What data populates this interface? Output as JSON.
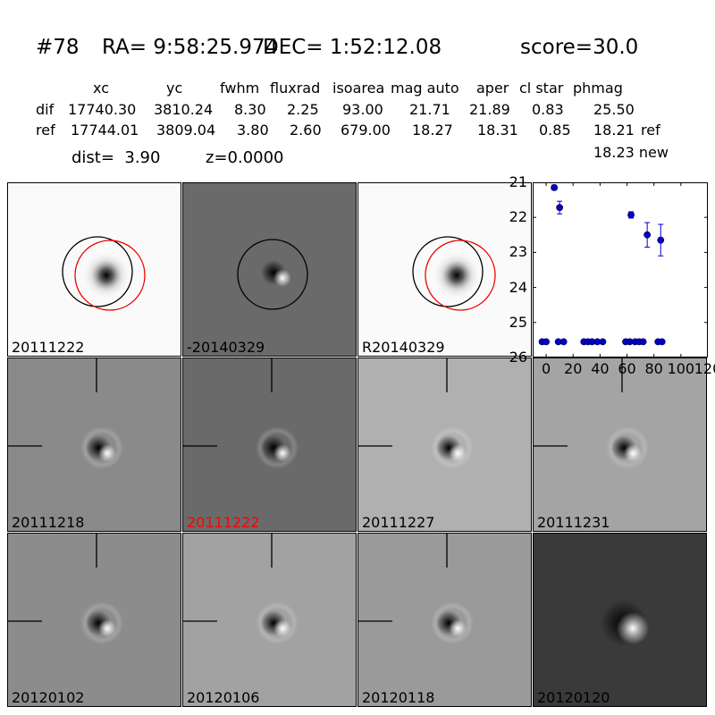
{
  "header": {
    "id": "#78",
    "ra": "RA= 9:58:25.974",
    "dec": "DEC= 1:52:12.08",
    "score": "score=30.0"
  },
  "table": {
    "columns": [
      "xc",
      "yc",
      "fwhm",
      "fluxrad",
      "isoarea",
      "mag auto",
      "aper",
      "cl star",
      "phmag"
    ],
    "rows": [
      {
        "label": "dif",
        "values": [
          "17740.30",
          "3810.24",
          "8.30",
          "2.25",
          "93.00",
          "21.71",
          "21.89",
          "0.83",
          "25.50"
        ],
        "extra": ""
      },
      {
        "label": "ref",
        "values": [
          "17744.01",
          "3809.04",
          "3.80",
          "2.60",
          "679.00",
          "18.27",
          "18.31",
          "0.85",
          "18.21"
        ],
        "extra": "ref"
      }
    ],
    "extra_line": "18.23 new"
  },
  "info": {
    "dist": "dist=  3.90",
    "z": "z=0.0000"
  },
  "panels": [
    {
      "label": "20111222",
      "bg": "#fafafa",
      "label_color": "#000000",
      "style": "ref_circles"
    },
    {
      "label": "-20140329",
      "bg": "#6a6a6a",
      "label_color": "#000000",
      "style": "dif_circle"
    },
    {
      "label": "R20140329",
      "bg": "#fafafa",
      "label_color": "#000000",
      "style": "ref_circles"
    },
    {
      "label": "20111218",
      "bg": "#8a8a8a",
      "label_color": "#000000",
      "style": "dipole"
    },
    {
      "label": "20111222",
      "bg": "#6a6a6a",
      "label_color": "#ff0000",
      "style": "dipole"
    },
    {
      "label": "20111227",
      "bg": "#b0b0b0",
      "label_color": "#000000",
      "style": "dipole"
    },
    {
      "label": "20111231",
      "bg": "#a4a4a4",
      "label_color": "#000000",
      "style": "dipole"
    },
    {
      "label": "20120102",
      "bg": "#8c8c8c",
      "label_color": "#000000",
      "style": "dipole"
    },
    {
      "label": "20120106",
      "bg": "#a2a2a2",
      "label_color": "#000000",
      "style": "dipole"
    },
    {
      "label": "20120118",
      "bg": "#9a9a9a",
      "label_color": "#000000",
      "style": "dipole"
    },
    {
      "label": "20120120",
      "bg": "#3a3a3a",
      "label_color": "#000000",
      "style": "dipole_big"
    }
  ],
  "chart_data": {
    "type": "scatter",
    "title": "",
    "xlabel": "",
    "ylabel": "",
    "xlim": [
      -10,
      120
    ],
    "ylim": [
      26,
      21
    ],
    "y_inverted": true,
    "xticks": [
      0,
      20,
      40,
      60,
      80,
      100,
      120
    ],
    "yticks": [
      21,
      22,
      23,
      24,
      25,
      26
    ],
    "color": "#0000cc",
    "points": [
      {
        "x": -3,
        "y": 25.55,
        "err": 0
      },
      {
        "x": 0,
        "y": 25.55,
        "err": 0
      },
      {
        "x": 6,
        "y": 21.15,
        "err": 0.07
      },
      {
        "x": 9,
        "y": 25.55,
        "err": 0
      },
      {
        "x": 10,
        "y": 21.72,
        "err": 0.18
      },
      {
        "x": 13,
        "y": 25.55,
        "err": 0
      },
      {
        "x": 28,
        "y": 25.55,
        "err": 0
      },
      {
        "x": 31,
        "y": 25.55,
        "err": 0
      },
      {
        "x": 34,
        "y": 25.55,
        "err": 0
      },
      {
        "x": 38,
        "y": 25.55,
        "err": 0
      },
      {
        "x": 42,
        "y": 25.55,
        "err": 0
      },
      {
        "x": 59,
        "y": 25.55,
        "err": 0
      },
      {
        "x": 62,
        "y": 25.55,
        "err": 0
      },
      {
        "x": 63,
        "y": 21.93,
        "err": 0.09
      },
      {
        "x": 66,
        "y": 25.55,
        "err": 0
      },
      {
        "x": 69,
        "y": 25.55,
        "err": 0
      },
      {
        "x": 72,
        "y": 25.55,
        "err": 0
      },
      {
        "x": 75,
        "y": 22.5,
        "err": 0.35
      },
      {
        "x": 83,
        "y": 25.55,
        "err": 0
      },
      {
        "x": 85,
        "y": 22.65,
        "err": 0.45
      },
      {
        "x": 86,
        "y": 25.55,
        "err": 0
      }
    ]
  }
}
